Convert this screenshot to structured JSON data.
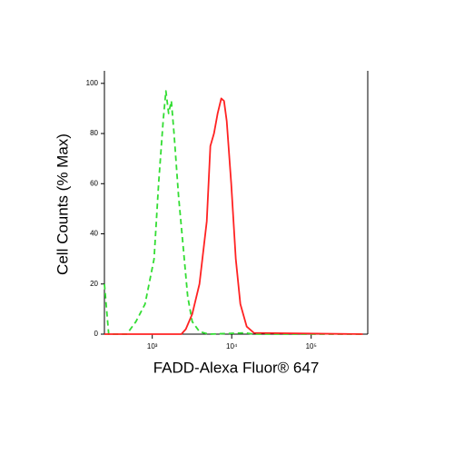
{
  "chart_data": {
    "type": "line",
    "ylabel": "Cell Counts (% Max)",
    "xlabel": "FADD-Alexa Fluor® 647",
    "xscale": "log",
    "xlim": [
      250,
      515000
    ],
    "ylim": [
      0,
      105
    ],
    "xticks": [
      {
        "value": 1000,
        "label": "10³"
      },
      {
        "value": 10000,
        "label": "10⁴"
      },
      {
        "value": 100000,
        "label": "10⁵"
      }
    ],
    "yticks": [
      0,
      20,
      40,
      60,
      80,
      100
    ],
    "series": [
      {
        "color": "#33dd33",
        "dash": true,
        "x": [
          250,
          283,
          478,
          623,
          811,
          1054,
          1202,
          1371,
          1484,
          1606,
          1738,
          1880,
          2143,
          2447,
          2793,
          3184,
          3928,
          5115,
          14650,
          19050,
          446000
        ],
        "values": [
          20,
          0,
          0,
          5,
          12,
          30,
          60,
          85,
          97,
          88,
          93,
          80,
          55,
          35,
          15,
          5,
          1,
          0,
          0.5,
          0,
          0
        ]
      },
      {
        "color": "#ff2222",
        "dash": false,
        "x": [
          250,
          2322,
          2645,
          3184,
          3928,
          4853,
          5385,
          5980,
          6650,
          7390,
          8000,
          8650,
          9860,
          11250,
          12840,
          15450,
          19050,
          446000
        ],
        "values": [
          0,
          0,
          2,
          8,
          20,
          45,
          75,
          80,
          88,
          94,
          93,
          85,
          60,
          30,
          12,
          3,
          0.5,
          0
        ]
      }
    ]
  }
}
